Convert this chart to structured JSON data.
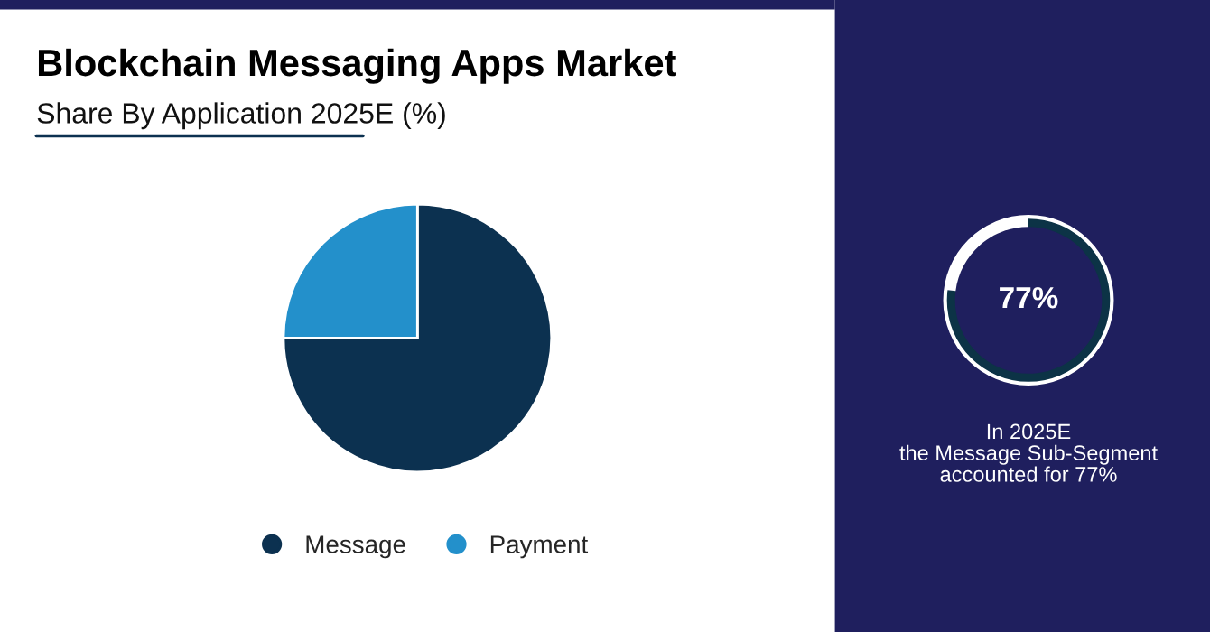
{
  "chart_data": [
    {
      "type": "pie",
      "title": "Blockchain Messaging Apps Market",
      "subtitle": "Share By Application 2025E (%)",
      "categories": [
        "Message",
        "Payment"
      ],
      "values": [
        75,
        25
      ],
      "colors": [
        "#0c3150",
        "#2390cb"
      ],
      "legend": "bottom"
    },
    {
      "type": "donut",
      "categories": [
        null,
        null
      ],
      "values": [
        77,
        23
      ],
      "colors": [
        "#0c3346",
        "#ffffff"
      ],
      "annotations": [
        "77%",
        "In 2025E\nthe Message Sub-Segment\naccounted for 77%"
      ]
    }
  ]
}
